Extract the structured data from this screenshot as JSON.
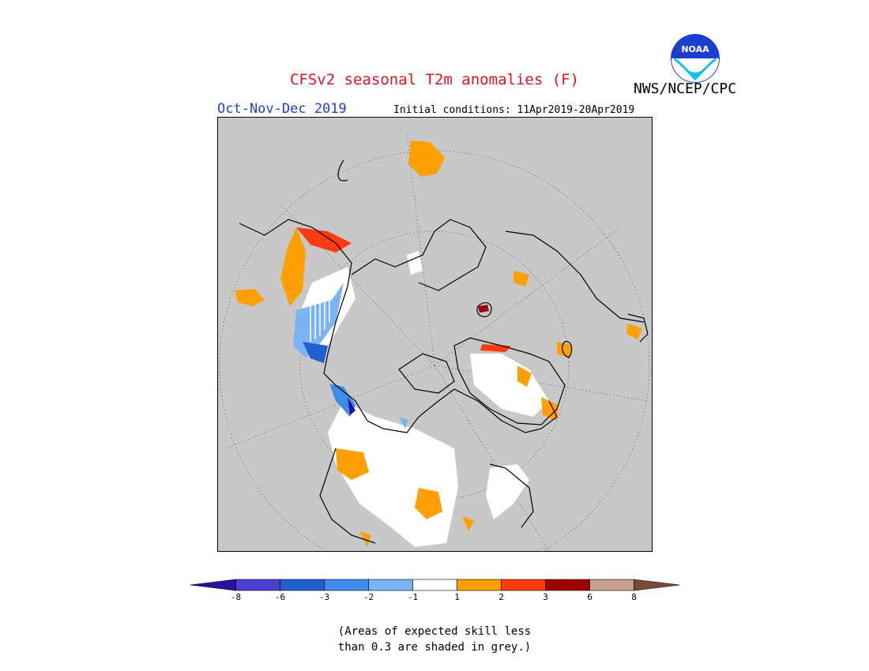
{
  "header": {
    "title": "CFSv2 seasonal T2m anomalies (F)",
    "organization": "NWS/NCEP/CPC",
    "season": "Oct-Nov-Dec 2019",
    "initial_conditions": "Initial conditions: 11Apr2019-20Apr2019",
    "logo_text": "NOAA"
  },
  "colors": {
    "title": "#e0141e",
    "season": "#1e3fd6",
    "no_skill_grey": "#c8c8c8",
    "land_outline": "#000000"
  },
  "legend": {
    "ticks": [
      "-8",
      "-6",
      "-3",
      "-2",
      "-1",
      "1",
      "2",
      "3",
      "6",
      "8"
    ],
    "bins": [
      {
        "color": "#2a0fa0",
        "label": "< -8"
      },
      {
        "color": "#4a3fcf",
        "label": "-8 to -6"
      },
      {
        "color": "#1f5fd0",
        "label": "-6 to -3"
      },
      {
        "color": "#3f8cec",
        "label": "-3 to -2"
      },
      {
        "color": "#7ab4f2",
        "label": "-2 to -1"
      },
      {
        "color": "#ffffff",
        "label": "-1 to 1"
      },
      {
        "color": "#ffa000",
        "label": "1 to 2"
      },
      {
        "color": "#ff3c10",
        "label": "2 to 3"
      },
      {
        "color": "#a00000",
        "label": "3 to 6"
      },
      {
        "color": "#c8a090",
        "label": "6 to 8"
      },
      {
        "color": "#7a4a3a",
        "label": "> 8"
      }
    ]
  },
  "footnote": {
    "line1": "(Areas of expected skill less",
    "line2": "than 0.3 are shaded in grey.)"
  }
}
